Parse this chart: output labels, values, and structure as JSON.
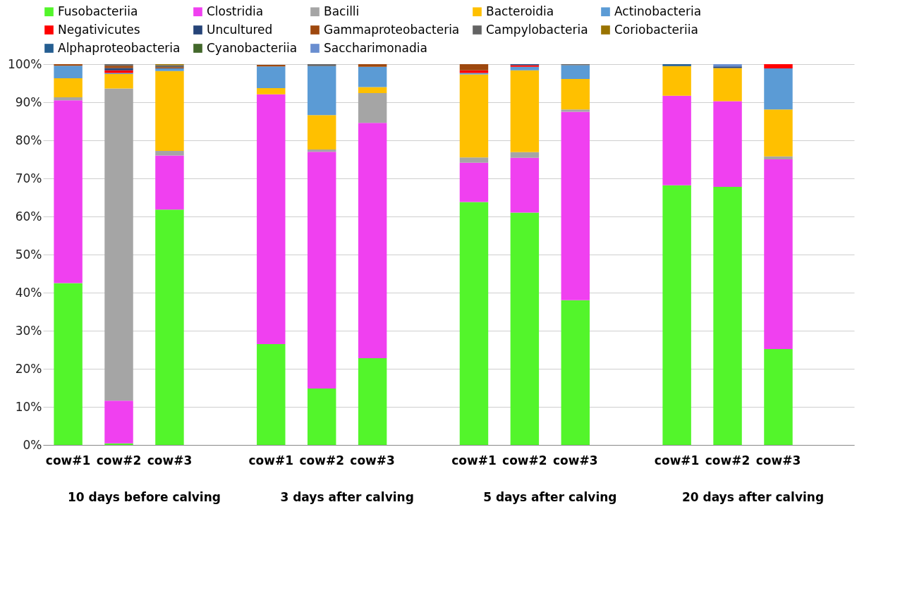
{
  "chart_data": {
    "type": "bar",
    "stacked": true,
    "categories": [
      "cow#1",
      "cow#2",
      "cow#3",
      null,
      "cow#1",
      "cow#2",
      "cow#3",
      null,
      "cow#1",
      "cow#2",
      "cow#3",
      null,
      "cow#1",
      "cow#2",
      "cow#3",
      null
    ],
    "annotations": [
      "10 days before calving",
      "3 days after calving",
      "5 days after calving",
      "20 days after calving"
    ],
    "ylim": [
      0,
      100
    ],
    "yticks": [
      {
        "value": 0,
        "label": "0%"
      },
      {
        "value": 10,
        "label": "10%"
      },
      {
        "value": 20,
        "label": "20%"
      },
      {
        "value": 30,
        "label": "30%"
      },
      {
        "value": 40,
        "label": "40%"
      },
      {
        "value": 50,
        "label": "50%"
      },
      {
        "value": 60,
        "label": "60%"
      },
      {
        "value": 70,
        "label": "70%"
      },
      {
        "value": 80,
        "label": "80%"
      },
      {
        "value": 90,
        "label": "90%"
      },
      {
        "value": 100,
        "label": "100%"
      }
    ],
    "grid": "y",
    "legend": "top",
    "series": [
      {
        "name": "Fusobacteriia",
        "color": "#53f52b",
        "values": [
          42.5,
          0.4,
          61.8,
          null,
          26.5,
          14.8,
          22.8,
          null,
          63.8,
          61,
          38,
          null,
          68.2,
          67.8,
          25.2,
          null
        ]
      },
      {
        "name": "Clostridia",
        "color": "#f040f0",
        "values": [
          48,
          11.2,
          14.2,
          null,
          65.6,
          62.2,
          61.8,
          null,
          10.3,
          14.4,
          49.5,
          null,
          23.5,
          22.5,
          49.8,
          null
        ]
      },
      {
        "name": "Bacilli",
        "color": "#a5a5a5",
        "values": [
          0.8,
          82,
          1.2,
          null,
          null,
          0.6,
          7.8,
          null,
          1.4,
          1.5,
          0.6,
          null,
          null,
          null,
          0.8,
          null
        ]
      },
      {
        "name": "Bacteroidia",
        "color": "#ffc000",
        "values": [
          5,
          3.8,
          21,
          null,
          1.6,
          9,
          1.6,
          null,
          21.8,
          21.5,
          8,
          null,
          7.8,
          8.7,
          12.3,
          null
        ]
      },
      {
        "name": "Actinobacteria",
        "color": "#5b9bd5",
        "values": [
          3.3,
          0.3,
          0.7,
          null,
          5.7,
          12.9,
          5.3,
          null,
          0.4,
          0.9,
          3.6,
          null,
          null,
          null,
          10.8,
          null
        ]
      },
      {
        "name": "Negativicutes",
        "color": "#ff0000",
        "values": [
          null,
          0.7,
          null,
          null,
          null,
          null,
          null,
          null,
          0.7,
          0.4,
          null,
          null,
          null,
          null,
          1.1,
          null
        ]
      },
      {
        "name": "Uncultured",
        "color": "#264478",
        "values": [
          null,
          0.6,
          null,
          null,
          null,
          null,
          null,
          null,
          null,
          0.3,
          null,
          null,
          null,
          0.4,
          null,
          null
        ]
      },
      {
        "name": "Gammaproteobacteria",
        "color": "#9e480e",
        "values": [
          0.4,
          0.6,
          0.3,
          null,
          0.4,
          null,
          0.7,
          null,
          1.6,
          null,
          null,
          null,
          null,
          null,
          null,
          null
        ]
      },
      {
        "name": "Campylobacteria",
        "color": "#636363",
        "values": [
          null,
          0.4,
          0.5,
          null,
          null,
          0.5,
          null,
          null,
          null,
          null,
          0.3,
          null,
          null,
          null,
          null,
          null
        ]
      },
      {
        "name": "Coriobacteriia",
        "color": "#997300",
        "values": [
          null,
          null,
          0.3,
          null,
          null,
          null,
          null,
          null,
          null,
          null,
          null,
          null,
          null,
          null,
          null,
          null
        ]
      },
      {
        "name": "Alphaproteobacteria",
        "color": "#255e91",
        "values": [
          null,
          null,
          null,
          null,
          null,
          null,
          null,
          null,
          null,
          null,
          null,
          null,
          0.5,
          null,
          null,
          null
        ]
      },
      {
        "name": "Cyanobacteriia",
        "color": "#43682b",
        "values": [
          null,
          null,
          null,
          null,
          null,
          null,
          null,
          null,
          null,
          null,
          null,
          null,
          null,
          null,
          null,
          null
        ]
      },
      {
        "name": "Saccharimonadia",
        "color": "#698ed0",
        "values": [
          null,
          null,
          null,
          null,
          null,
          null,
          null,
          null,
          null,
          null,
          null,
          null,
          null,
          0.6,
          null,
          null
        ]
      }
    ]
  }
}
